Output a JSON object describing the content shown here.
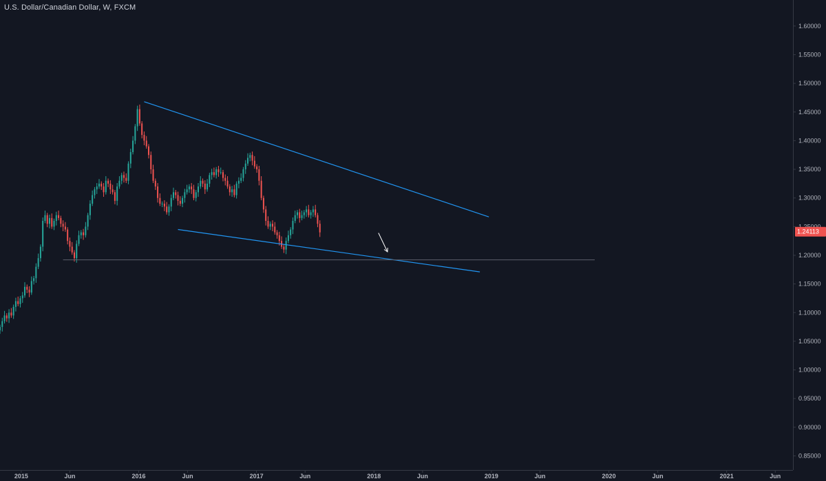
{
  "header": {
    "title": "U.S. Dollar/Canadian Dollar, W, FXCM"
  },
  "colors": {
    "background": "#131722",
    "axis_border": "#363a45",
    "axis_text": "#b2b5be",
    "up": "#26a69a",
    "down": "#ef5350",
    "trendline": "#2196f3",
    "support_line": "#5d606b",
    "arrow": "#ffffff",
    "price_badge": "#ef5350"
  },
  "chart_data": {
    "type": "candlestick",
    "symbol": "U.S. Dollar/Canadian Dollar",
    "interval": "W",
    "source": "FXCM",
    "y_axis": {
      "range": [
        0.835,
        1.625
      ],
      "ticks": [
        "1.60000",
        "1.55000",
        "1.50000",
        "1.45000",
        "1.40000",
        "1.35000",
        "1.30000",
        "1.25000",
        "1.20000",
        "1.15000",
        "1.10000",
        "1.05000",
        "1.00000",
        "0.95000",
        "0.90000",
        "0.85000"
      ]
    },
    "x_axis": {
      "range": [
        "2014-10-27",
        "2021-07-26"
      ],
      "ticks": [
        {
          "label": "2015",
          "date": "2015-01-01"
        },
        {
          "label": "Jun",
          "date": "2015-06-01"
        },
        {
          "label": "2016",
          "date": "2016-01-01"
        },
        {
          "label": "Jun",
          "date": "2016-06-01"
        },
        {
          "label": "2017",
          "date": "2017-01-01"
        },
        {
          "label": "Jun",
          "date": "2017-06-01"
        },
        {
          "label": "2018",
          "date": "2018-01-01"
        },
        {
          "label": "Jun",
          "date": "2018-06-01"
        },
        {
          "label": "2019",
          "date": "2019-01-01"
        },
        {
          "label": "Jun",
          "date": "2019-06-01"
        },
        {
          "label": "2020",
          "date": "2020-01-01"
        },
        {
          "label": "Jun",
          "date": "2020-06-01"
        },
        {
          "label": "2021",
          "date": "2021-01-01"
        },
        {
          "label": "Jun",
          "date": "2021-06-01"
        }
      ]
    },
    "candles_start": "2014-10-27",
    "candles_interval_days": 7,
    "closes": [
      1.075,
      1.085,
      1.095,
      1.09,
      1.1,
      1.095,
      1.11,
      1.12,
      1.115,
      1.125,
      1.13,
      1.145,
      1.14,
      1.135,
      1.155,
      1.16,
      1.18,
      1.195,
      1.215,
      1.26,
      1.27,
      1.255,
      1.265,
      1.25,
      1.26,
      1.27,
      1.265,
      1.255,
      1.25,
      1.245,
      1.225,
      1.215,
      1.205,
      1.195,
      1.22,
      1.235,
      1.24,
      1.235,
      1.25,
      1.27,
      1.29,
      1.305,
      1.315,
      1.32,
      1.325,
      1.32,
      1.31,
      1.33,
      1.325,
      1.315,
      1.31,
      1.295,
      1.32,
      1.33,
      1.34,
      1.335,
      1.33,
      1.36,
      1.38,
      1.4,
      1.425,
      1.455,
      1.43,
      1.41,
      1.4,
      1.39,
      1.375,
      1.35,
      1.33,
      1.32,
      1.3,
      1.29,
      1.29,
      1.285,
      1.275,
      1.285,
      1.3,
      1.31,
      1.305,
      1.295,
      1.29,
      1.3,
      1.31,
      1.315,
      1.32,
      1.315,
      1.3,
      1.31,
      1.32,
      1.33,
      1.325,
      1.315,
      1.325,
      1.34,
      1.345,
      1.34,
      1.35,
      1.345,
      1.345,
      1.335,
      1.33,
      1.32,
      1.31,
      1.315,
      1.305,
      1.325,
      1.33,
      1.335,
      1.35,
      1.36,
      1.37,
      1.375,
      1.365,
      1.355,
      1.35,
      1.33,
      1.3,
      1.28,
      1.26,
      1.25,
      1.255,
      1.25,
      1.24,
      1.235,
      1.225,
      1.215,
      1.21,
      1.225,
      1.235,
      1.245,
      1.26,
      1.27,
      1.275,
      1.265,
      1.27,
      1.275,
      1.28,
      1.27,
      1.275,
      1.28,
      1.27,
      1.255,
      1.24
    ],
    "overlays": {
      "upper_trendline": {
        "from": {
          "date": "2016-01-18",
          "price": 1.468
        },
        "to": {
          "date": "2018-12-24",
          "price": 1.267
        }
      },
      "lower_trendline": {
        "from": {
          "date": "2016-05-02",
          "price": 1.245
        },
        "to": {
          "date": "2018-11-26",
          "price": 1.171
        }
      },
      "support_line": {
        "from": {
          "date": "2015-05-11",
          "price": 1.192
        },
        "to": {
          "date": "2019-11-18",
          "price": 1.192
        }
      },
      "arrow": {
        "from": {
          "date": "2018-01-15",
          "price": 1.239
        },
        "to": {
          "date": "2018-02-12",
          "price": 1.206
        }
      }
    },
    "last_price": "1.24113"
  }
}
